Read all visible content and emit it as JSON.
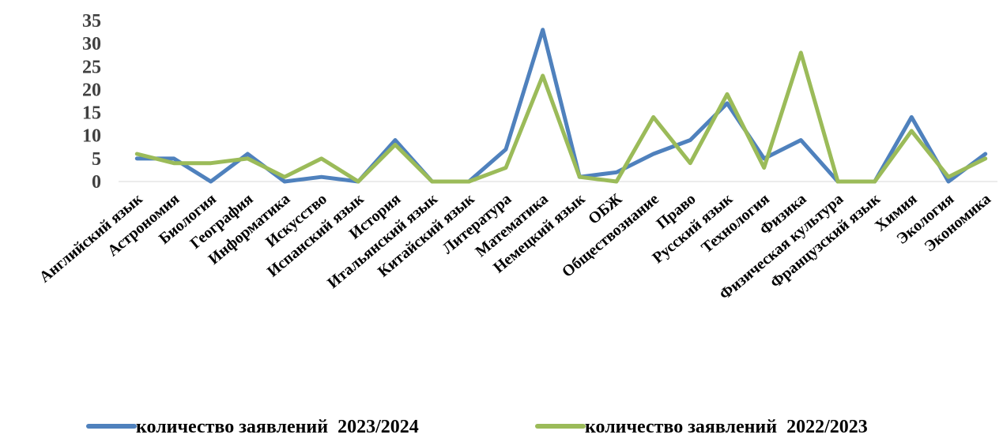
{
  "chart_data": {
    "type": "line",
    "title": "",
    "xlabel": "",
    "ylabel": "",
    "ylim": [
      0,
      35
    ],
    "yticks": [
      0,
      5,
      10,
      15,
      20,
      25,
      30,
      35
    ],
    "grid": false,
    "legend_position": "bottom",
    "categories": [
      "Английский язык",
      "Астрономия",
      "Биология",
      "География",
      "Информатика",
      "Искусство",
      "Испанский язык",
      "История",
      "Итальянский язык",
      "Китайский язык",
      "Литература",
      "Математика",
      "Немецкий язык",
      "ОБЖ",
      "Обществознание",
      "Право",
      "Русский язык",
      "Технология",
      "Физика",
      "Физическая культура",
      "Французский язык",
      "Химия",
      "Экология",
      "Экономика"
    ],
    "series": [
      {
        "name": "количество заявлений  2023/2024",
        "color": "#4F81BD",
        "values": [
          5,
          5,
          0,
          6,
          0,
          1,
          0,
          9,
          0,
          0,
          7,
          33,
          1,
          2,
          6,
          9,
          17,
          5,
          9,
          0,
          0,
          14,
          0,
          6
        ]
      },
      {
        "name": "количество заявлений  2022/2023",
        "color": "#9BBB59",
        "values": [
          6,
          4,
          4,
          5,
          1,
          5,
          0,
          8,
          0,
          0,
          3,
          23,
          1,
          0,
          14,
          4,
          19,
          3,
          28,
          0,
          0,
          11,
          1,
          5
        ]
      }
    ]
  }
}
